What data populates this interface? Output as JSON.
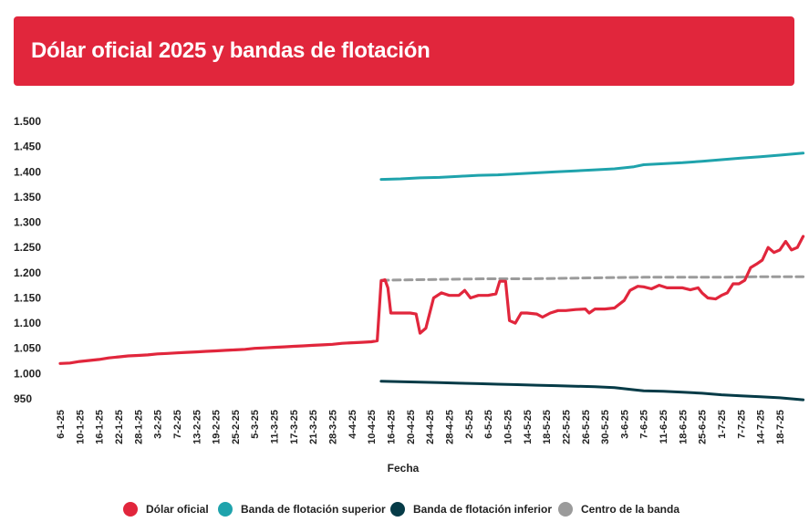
{
  "chart_data": {
    "type": "line",
    "title": "Dólar oficial 2025 y bandas de flotación",
    "xlabel": "Fecha",
    "ylabel": "",
    "ylim": [
      950,
      1500
    ],
    "yticks": [
      "1.500",
      "1.450",
      "1.400",
      "1.350",
      "1.300",
      "1.250",
      "1.200",
      "1.150",
      "1.100",
      "1.050",
      "1.000",
      "950"
    ],
    "ytick_values": [
      1500,
      1450,
      1400,
      1350,
      1300,
      1250,
      1200,
      1150,
      1100,
      1050,
      1000,
      950
    ],
    "categories": [
      "6-1-25",
      "10-1-25",
      "16-1-25",
      "22-1-25",
      "28-1-25",
      "3-2-25",
      "7-2-25",
      "13-2-25",
      "19-2-25",
      "25-2-25",
      "5-3-25",
      "11-3-25",
      "17-3-25",
      "21-3-25",
      "28-3-25",
      "4-4-25",
      "10-4-25",
      "16-4-25",
      "20-4-25",
      "24-4-25",
      "28-4-25",
      "2-5-25",
      "6-5-25",
      "10-5-25",
      "14-5-25",
      "18-5-25",
      "22-5-25",
      "26-5-25",
      "30-5-25",
      "3-6-25",
      "7-6-25",
      "11-6-25",
      "18-6-25",
      "25-6-25",
      "1-7-25",
      "7-7-25",
      "14-7-25",
      "18-7-25"
    ],
    "grid": false,
    "legend_position": "bottom",
    "series": [
      {
        "name": "Dólar oficial",
        "color": "#e1263c",
        "style": "solid",
        "points": [
          [
            0,
            1020
          ],
          [
            0.5,
            1021
          ],
          [
            1,
            1024
          ],
          [
            1.5,
            1026
          ],
          [
            2,
            1028
          ],
          [
            2.5,
            1031
          ],
          [
            3,
            1033
          ],
          [
            3.5,
            1035
          ],
          [
            4,
            1036
          ],
          [
            4.5,
            1037
          ],
          [
            5,
            1039
          ],
          [
            5.5,
            1040
          ],
          [
            6,
            1041
          ],
          [
            6.5,
            1042
          ],
          [
            7,
            1043
          ],
          [
            7.5,
            1044
          ],
          [
            8,
            1045
          ],
          [
            8.5,
            1046
          ],
          [
            9,
            1047
          ],
          [
            9.5,
            1048
          ],
          [
            10,
            1050
          ],
          [
            10.5,
            1051
          ],
          [
            11,
            1052
          ],
          [
            11.5,
            1053
          ],
          [
            12,
            1054
          ],
          [
            12.5,
            1055
          ],
          [
            13,
            1056
          ],
          [
            13.5,
            1057
          ],
          [
            14,
            1058
          ],
          [
            14.5,
            1060
          ],
          [
            15,
            1061
          ],
          [
            15.5,
            1062
          ],
          [
            16,
            1063
          ],
          [
            16.3,
            1065
          ],
          [
            16.5,
            1184
          ],
          [
            16.7,
            1186
          ],
          [
            16.85,
            1170
          ],
          [
            17,
            1120
          ],
          [
            17.6,
            1120
          ],
          [
            18,
            1120
          ],
          [
            18.3,
            1118
          ],
          [
            18.5,
            1080
          ],
          [
            18.8,
            1090
          ],
          [
            19.2,
            1150
          ],
          [
            19.6,
            1160
          ],
          [
            20,
            1155
          ],
          [
            20.5,
            1155
          ],
          [
            20.8,
            1165
          ],
          [
            21.1,
            1150
          ],
          [
            21.5,
            1155
          ],
          [
            22,
            1155
          ],
          [
            22.4,
            1158
          ],
          [
            22.6,
            1183
          ],
          [
            22.9,
            1183
          ],
          [
            23.1,
            1105
          ],
          [
            23.4,
            1100
          ],
          [
            23.7,
            1120
          ],
          [
            24,
            1120
          ],
          [
            24.5,
            1118
          ],
          [
            24.8,
            1112
          ],
          [
            25.2,
            1120
          ],
          [
            25.6,
            1125
          ],
          [
            26,
            1125
          ],
          [
            26.5,
            1127
          ],
          [
            27,
            1128
          ],
          [
            27.2,
            1120
          ],
          [
            27.5,
            1128
          ],
          [
            28,
            1128
          ],
          [
            28.5,
            1130
          ],
          [
            29,
            1145
          ],
          [
            29.3,
            1165
          ],
          [
            29.7,
            1173
          ],
          [
            30,
            1172
          ],
          [
            30.4,
            1168
          ],
          [
            30.8,
            1175
          ],
          [
            31.2,
            1170
          ],
          [
            31.6,
            1170
          ],
          [
            32,
            1170
          ],
          [
            32.4,
            1166
          ],
          [
            32.8,
            1170
          ],
          [
            33,
            1160
          ],
          [
            33.3,
            1150
          ],
          [
            33.7,
            1148
          ],
          [
            34,
            1155
          ],
          [
            34.3,
            1160
          ],
          [
            34.6,
            1178
          ],
          [
            34.9,
            1178
          ],
          [
            35.2,
            1185
          ],
          [
            35.5,
            1210
          ],
          [
            35.8,
            1217
          ],
          [
            36.1,
            1225
          ],
          [
            36.4,
            1250
          ],
          [
            36.7,
            1240
          ],
          [
            37,
            1245
          ],
          [
            37.3,
            1262
          ],
          [
            37.6,
            1245
          ],
          [
            37.9,
            1250
          ],
          [
            38.2,
            1272
          ]
        ]
      },
      {
        "name": "Banda de flotación superior",
        "color": "#1fa3ac",
        "style": "solid",
        "points": [
          [
            16.5,
            1385
          ],
          [
            17.5,
            1386
          ],
          [
            18.5,
            1388
          ],
          [
            19.5,
            1389
          ],
          [
            20.5,
            1391
          ],
          [
            21.5,
            1393
          ],
          [
            22.5,
            1394
          ],
          [
            23.5,
            1396
          ],
          [
            24.5,
            1398
          ],
          [
            25.5,
            1400
          ],
          [
            26.5,
            1402
          ],
          [
            27.5,
            1404
          ],
          [
            28.5,
            1406
          ],
          [
            29.5,
            1410
          ],
          [
            30,
            1414
          ],
          [
            31,
            1416
          ],
          [
            32,
            1418
          ],
          [
            33,
            1421
          ],
          [
            34,
            1424
          ],
          [
            35,
            1427
          ],
          [
            36,
            1430
          ],
          [
            37,
            1433
          ],
          [
            38.2,
            1437
          ]
        ]
      },
      {
        "name": "Banda de flotación inferior",
        "color": "#063b47",
        "style": "solid",
        "points": [
          [
            16.5,
            985
          ],
          [
            17.5,
            984
          ],
          [
            18.5,
            983
          ],
          [
            19.5,
            982
          ],
          [
            20.5,
            981
          ],
          [
            21.5,
            980
          ],
          [
            22.5,
            979
          ],
          [
            23.5,
            978
          ],
          [
            24.5,
            977
          ],
          [
            25.5,
            976
          ],
          [
            26.5,
            975
          ],
          [
            27.5,
            974
          ],
          [
            28.5,
            972
          ],
          [
            29.5,
            968
          ],
          [
            30,
            966
          ],
          [
            31,
            965
          ],
          [
            32,
            963
          ],
          [
            33,
            961
          ],
          [
            34,
            958
          ],
          [
            35,
            956
          ],
          [
            36,
            954
          ],
          [
            37,
            952
          ],
          [
            38.2,
            948
          ]
        ]
      },
      {
        "name": "Centro de la banda",
        "color": "#9b9b9b",
        "style": "dashed",
        "points": [
          [
            16.5,
            1185
          ],
          [
            18,
            1186
          ],
          [
            20,
            1187
          ],
          [
            22,
            1188
          ],
          [
            24,
            1188
          ],
          [
            26,
            1189
          ],
          [
            28,
            1190
          ],
          [
            30,
            1191
          ],
          [
            32,
            1191
          ],
          [
            34,
            1191
          ],
          [
            36,
            1192
          ],
          [
            38.2,
            1192
          ]
        ]
      }
    ]
  }
}
